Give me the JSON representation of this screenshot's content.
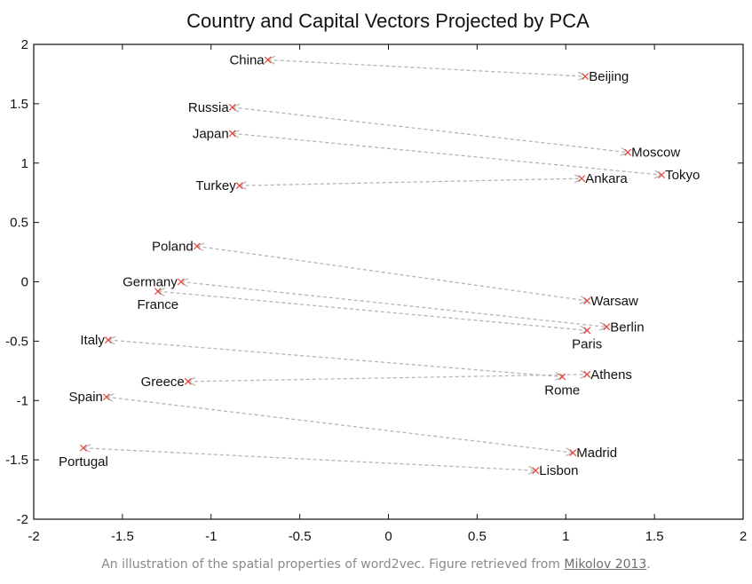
{
  "chart_data": {
    "type": "scatter",
    "title": "Country and Capital Vectors Projected by PCA",
    "xlabel": "",
    "ylabel": "",
    "xlim": [
      -2,
      2
    ],
    "ylim": [
      -2,
      2
    ],
    "x_ticks": [
      "-2",
      "-1.5",
      "-1",
      "-0.5",
      "0",
      "0.5",
      "1",
      "1.5",
      "2"
    ],
    "y_ticks": [
      "2",
      "1.5",
      "1",
      "0.5",
      "0",
      "-0.5",
      "-1",
      "-1.5",
      "-2"
    ],
    "grid": false,
    "points": [
      {
        "label": "China",
        "x": -0.68,
        "y": 1.87,
        "label_side": "left"
      },
      {
        "label": "Beijing",
        "x": 1.11,
        "y": 1.73,
        "label_side": "right"
      },
      {
        "label": "Russia",
        "x": -0.88,
        "y": 1.47,
        "label_side": "left"
      },
      {
        "label": "Moscow",
        "x": 1.35,
        "y": 1.09,
        "label_side": "right"
      },
      {
        "label": "Japan",
        "x": -0.88,
        "y": 1.25,
        "label_side": "left"
      },
      {
        "label": "Tokyo",
        "x": 1.54,
        "y": 0.9,
        "label_side": "right"
      },
      {
        "label": "Turkey",
        "x": -0.84,
        "y": 0.81,
        "label_side": "left"
      },
      {
        "label": "Ankara",
        "x": 1.09,
        "y": 0.87,
        "label_side": "right"
      },
      {
        "label": "Poland",
        "x": -1.08,
        "y": 0.3,
        "label_side": "left"
      },
      {
        "label": "Warsaw",
        "x": 1.12,
        "y": -0.16,
        "label_side": "right"
      },
      {
        "label": "Germany",
        "x": -1.17,
        "y": 0.0,
        "label_side": "left"
      },
      {
        "label": "Berlin",
        "x": 1.23,
        "y": -0.38,
        "label_side": "right"
      },
      {
        "label": "France",
        "x": -1.3,
        "y": -0.08,
        "label_side": "below"
      },
      {
        "label": "Paris",
        "x": 1.12,
        "y": -0.41,
        "label_side": "below"
      },
      {
        "label": "Italy",
        "x": -1.58,
        "y": -0.49,
        "label_side": "left"
      },
      {
        "label": "Rome",
        "x": 0.98,
        "y": -0.8,
        "label_side": "below"
      },
      {
        "label": "Greece",
        "x": -1.13,
        "y": -0.84,
        "label_side": "left"
      },
      {
        "label": "Athens",
        "x": 1.12,
        "y": -0.78,
        "label_side": "right"
      },
      {
        "label": "Spain",
        "x": -1.59,
        "y": -0.97,
        "label_side": "left"
      },
      {
        "label": "Madrid",
        "x": 1.04,
        "y": -1.44,
        "label_side": "right"
      },
      {
        "label": "Portugal",
        "x": -1.72,
        "y": -1.4,
        "label_side": "below"
      },
      {
        "label": "Lisbon",
        "x": 0.83,
        "y": -1.59,
        "label_side": "right"
      }
    ],
    "arrows": [
      {
        "from": "China",
        "to": "Beijing"
      },
      {
        "from": "Russia",
        "to": "Moscow"
      },
      {
        "from": "Japan",
        "to": "Tokyo"
      },
      {
        "from": "Turkey",
        "to": "Ankara"
      },
      {
        "from": "Poland",
        "to": "Warsaw"
      },
      {
        "from": "Germany",
        "to": "Berlin"
      },
      {
        "from": "France",
        "to": "Paris"
      },
      {
        "from": "Italy",
        "to": "Rome"
      },
      {
        "from": "Greece",
        "to": "Athens"
      },
      {
        "from": "Spain",
        "to": "Madrid"
      },
      {
        "from": "Portugal",
        "to": "Lisbon"
      }
    ],
    "colors": {
      "marker": "#e0443a",
      "arrow": "#b5b5b5",
      "axis": "#111111"
    }
  },
  "caption": {
    "text": "An illustration of the spatial properties of word2vec. Figure retrieved from ",
    "link_text": "Mikolov 2013",
    "suffix": "."
  }
}
